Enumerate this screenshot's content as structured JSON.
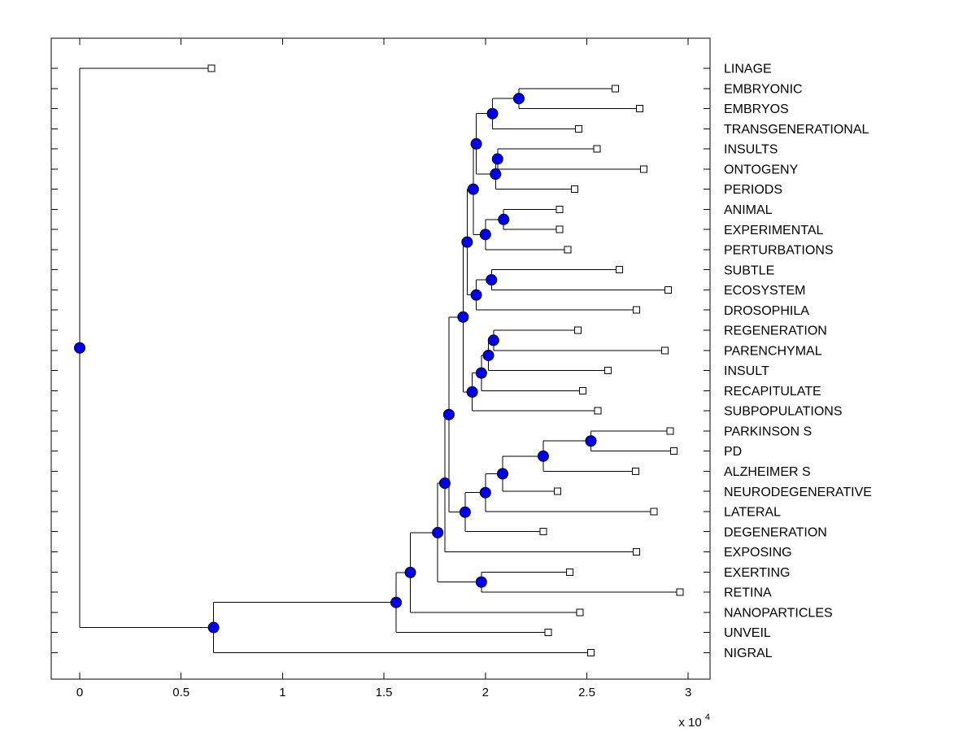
{
  "figure": {
    "title": "",
    "background": "#ffffff"
  },
  "chart_data": {
    "type": "dendrogram",
    "title": "",
    "xlabel": "",
    "ylabel": "",
    "grid": false,
    "axis": {
      "x_ticks": [
        0,
        0.5,
        1,
        1.5,
        2,
        2.5,
        3
      ],
      "x_tick_labels": [
        "0",
        "0.5",
        "1",
        "1.5",
        "2",
        "2.5",
        "3"
      ],
      "x_scale_factor": 10000,
      "x_multiplier_base": "x 10",
      "x_multiplier_exponent": "4",
      "xlim": [
        -1400,
        31080
      ],
      "box": true,
      "tick_direction": "in"
    },
    "colors": {
      "line": "#000000",
      "internal_node_fill": "#0000ee",
      "internal_node_edge": "#000000",
      "leaf_marker_fill": "#ffffff",
      "leaf_marker_edge": "#000000",
      "text": "#000000"
    },
    "leaves": [
      {
        "id": "L1",
        "label": "LINAGE",
        "x": 6500
      },
      {
        "id": "L2",
        "label": "EMBRYONIC",
        "x": 26400
      },
      {
        "id": "L3",
        "label": "EMBRYOS",
        "x": 27600
      },
      {
        "id": "L4",
        "label": "TRANSGENERATIONAL",
        "x": 24600
      },
      {
        "id": "L5",
        "label": "INSULTS",
        "x": 25500
      },
      {
        "id": "L6",
        "label": "ONTOGENY",
        "x": 27800
      },
      {
        "id": "L7",
        "label": "PERIODS",
        "x": 24400
      },
      {
        "id": "L8",
        "label": "ANIMAL",
        "x": 23650
      },
      {
        "id": "L9",
        "label": "EXPERIMENTAL",
        "x": 23650
      },
      {
        "id": "L10",
        "label": "PERTURBATIONS",
        "x": 24050
      },
      {
        "id": "L11",
        "label": "SUBTLE",
        "x": 26600
      },
      {
        "id": "L12",
        "label": "ECOSYSTEM",
        "x": 29000
      },
      {
        "id": "L13",
        "label": "DROSOPHILA",
        "x": 27450
      },
      {
        "id": "L14",
        "label": "REGENERATION",
        "x": 24550
      },
      {
        "id": "L15",
        "label": "PARENCHYMAL",
        "x": 28850
      },
      {
        "id": "L16",
        "label": "INSULT",
        "x": 26050
      },
      {
        "id": "L17",
        "label": "RECAPITULATE",
        "x": 24800
      },
      {
        "id": "L18",
        "label": "SUBPOPULATIONS",
        "x": 25550
      },
      {
        "id": "L19",
        "label": "PARKINSON S",
        "x": 29100
      },
      {
        "id": "L20",
        "label": "PD",
        "x": 29300
      },
      {
        "id": "L21",
        "label": "ALZHEIMER S",
        "x": 27400
      },
      {
        "id": "L22",
        "label": "NEURODEGENERATIVE",
        "x": 23550
      },
      {
        "id": "L23",
        "label": "LATERAL",
        "x": 28300
      },
      {
        "id": "L24",
        "label": "DEGENERATION",
        "x": 22850
      },
      {
        "id": "L25",
        "label": "EXPOSING",
        "x": 27450
      },
      {
        "id": "L26",
        "label": "EXERTING",
        "x": 24150
      },
      {
        "id": "L27",
        "label": "RETINA",
        "x": 29600
      },
      {
        "id": "L28",
        "label": "NANOPARTICLES",
        "x": 24650
      },
      {
        "id": "L29",
        "label": "UNVEIL",
        "x": 23100
      },
      {
        "id": "L30",
        "label": "NIGRAL",
        "x": 25200
      }
    ],
    "internal_nodes": [
      {
        "id": "nA",
        "x": 21650,
        "children": [
          "L2",
          "L3"
        ]
      },
      {
        "id": "nB",
        "x": 20350,
        "children": [
          "nA",
          "L4"
        ]
      },
      {
        "id": "nD",
        "x": 20600,
        "children": [
          "L5",
          "L6"
        ]
      },
      {
        "id": "nE",
        "x": 20500,
        "children": [
          "nD",
          "L7"
        ]
      },
      {
        "id": "nC",
        "x": 19550,
        "children": [
          "nB",
          "nE"
        ]
      },
      {
        "id": "nG1",
        "x": 20900,
        "children": [
          "L8",
          "L9"
        ]
      },
      {
        "id": "nG",
        "x": 20000,
        "children": [
          "nG1",
          "L10"
        ]
      },
      {
        "id": "nF",
        "x": 19400,
        "children": [
          "nC",
          "nG"
        ]
      },
      {
        "id": "nJ",
        "x": 20300,
        "children": [
          "L11",
          "L12"
        ]
      },
      {
        "id": "nK",
        "x": 19550,
        "children": [
          "nJ",
          "L13"
        ]
      },
      {
        "id": "nH",
        "x": 19100,
        "children": [
          "nF",
          "nK"
        ]
      },
      {
        "id": "nN",
        "x": 20400,
        "children": [
          "L14",
          "L15"
        ]
      },
      {
        "id": "nO",
        "x": 20150,
        "children": [
          "nN",
          "L16"
        ]
      },
      {
        "id": "nP",
        "x": 19800,
        "children": [
          "nO",
          "L17"
        ]
      },
      {
        "id": "nM",
        "x": 19350,
        "children": [
          "nP",
          "L18"
        ]
      },
      {
        "id": "nI",
        "x": 18900,
        "children": [
          "nH",
          "nM"
        ]
      },
      {
        "id": "nR",
        "x": 25200,
        "children": [
          "L19",
          "L20"
        ]
      },
      {
        "id": "nS",
        "x": 22850,
        "children": [
          "nR",
          "L21"
        ]
      },
      {
        "id": "nT",
        "x": 20850,
        "children": [
          "nS",
          "L22"
        ]
      },
      {
        "id": "nU",
        "x": 20000,
        "children": [
          "nT",
          "L23"
        ]
      },
      {
        "id": "nV",
        "x": 19000,
        "children": [
          "nU",
          "L24"
        ]
      },
      {
        "id": "nQ0",
        "x": 18200,
        "children": [
          "nI",
          "nV"
        ]
      },
      {
        "id": "nQ",
        "x": 18000,
        "children": [
          "nQ0",
          "L25"
        ]
      },
      {
        "id": "nX",
        "x": 19800,
        "children": [
          "L26",
          "L27"
        ]
      },
      {
        "id": "nW",
        "x": 17650,
        "children": [
          "nQ",
          "nX"
        ]
      },
      {
        "id": "nY",
        "x": 16300,
        "children": [
          "nW",
          "L28"
        ]
      },
      {
        "id": "nZ",
        "x": 15600,
        "children": [
          "nY",
          "L29"
        ]
      },
      {
        "id": "nR2",
        "x": 6600,
        "children": [
          "nZ",
          "L30"
        ]
      },
      {
        "id": "nRoot",
        "x": 0,
        "children": [
          "L1",
          "nR2"
        ]
      }
    ]
  }
}
